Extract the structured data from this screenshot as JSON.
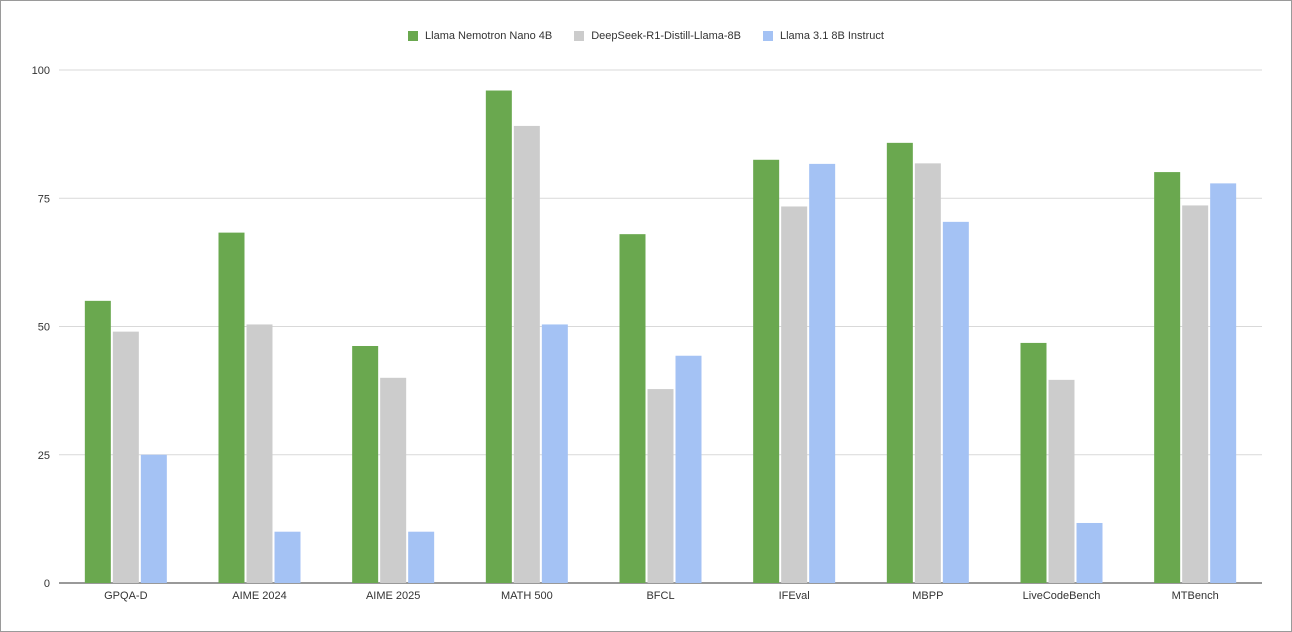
{
  "chart_data": {
    "type": "bar",
    "title": "",
    "xlabel": "",
    "ylabel": "",
    "ylim": [
      0,
      100
    ],
    "yticks": [
      0,
      25,
      50,
      75,
      100
    ],
    "grid": true,
    "legend_position": "top-center",
    "categories": [
      "GPQA-D",
      "AIME 2024",
      "AIME 2025",
      "MATH 500",
      "BFCL",
      "IFEval",
      "MBPP",
      "LiveCodeBench",
      "MTBench"
    ],
    "series": [
      {
        "name": "Llama Nemotron Nano 4B",
        "color": "#6aa84f",
        "values": [
          55,
          68.3,
          46.2,
          96.0,
          68.0,
          82.5,
          85.8,
          46.8,
          80.1
        ]
      },
      {
        "name": "DeepSeek-R1-Distill-Llama-8B",
        "color": "#cccccc",
        "values": [
          49,
          50.4,
          40.0,
          89.1,
          37.8,
          73.4,
          81.8,
          39.6,
          73.6
        ]
      },
      {
        "name": "Llama 3.1 8B Instruct",
        "color": "#a4c2f4",
        "values": [
          25,
          10.0,
          10.0,
          50.4,
          44.3,
          81.7,
          70.4,
          11.7,
          77.9
        ]
      }
    ]
  }
}
